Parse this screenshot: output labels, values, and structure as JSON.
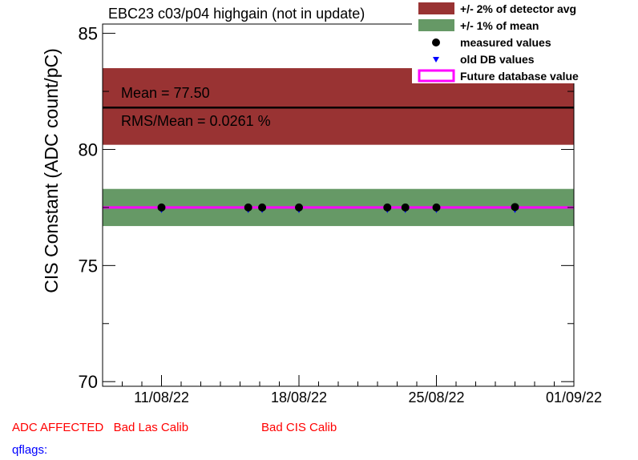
{
  "chart_data": {
    "type": "scatter",
    "title": "EBC23 c03/p04 highgain (not in update)",
    "ylabel": "CIS Constant (ADC count/pC)",
    "xlabel": "",
    "ylim": [
      69.8,
      85.4
    ],
    "y_ticks": [
      "70",
      "75",
      "80",
      "85"
    ],
    "x_tick_labels": [
      "11/08/22",
      "18/08/22",
      "25/08/22",
      "01/09/22"
    ],
    "x_tick_dates": [
      "2022-08-11",
      "2022-08-18",
      "2022-08-25",
      "2022-09-01"
    ],
    "xlim": [
      "2022-08-08",
      "2022-09-01"
    ],
    "grid": false,
    "legend_position": "top-right",
    "bands": [
      {
        "name": "+/- 2% of detector avg",
        "y_low": 80.2,
        "y_high": 83.5,
        "color": "#993333"
      },
      {
        "name": "+/- 1% of mean",
        "y_low": 76.7,
        "y_high": 78.3,
        "color": "#669966"
      }
    ],
    "mean_line": {
      "y": 81.8,
      "color": "#000000"
    },
    "future_line": {
      "name": "Future database value",
      "y": 77.5,
      "color": "#ff00ff"
    },
    "annotations": [
      "Mean = 77.50",
      "RMS/Mean = 0.0261 %"
    ],
    "series": [
      {
        "name": "measured values",
        "color": "#000000",
        "x": [
          "2022-08-11",
          "2022-08-15 10:00",
          "2022-08-16 03:00",
          "2022-08-18",
          "2022-08-22 12:00",
          "2022-08-23 10:00",
          "2022-08-25",
          "2022-08-29"
        ],
        "y": [
          77.5,
          77.5,
          77.5,
          77.5,
          77.5,
          77.5,
          77.5,
          77.52
        ]
      },
      {
        "name": "old DB values",
        "color": "#0000ff",
        "x": [
          "2022-08-11",
          "2022-08-15 10:00",
          "2022-08-16 03:00",
          "2022-08-18",
          "2022-08-22 12:00",
          "2022-08-23 10:00",
          "2022-08-25",
          "2022-08-29"
        ],
        "y": [
          77.5,
          77.5,
          77.5,
          77.5,
          77.5,
          77.5,
          77.5,
          77.5
        ]
      }
    ],
    "legend": [
      {
        "label": "+/- 2% of detector avg",
        "kind": "box",
        "color": "#993333"
      },
      {
        "label": "+/- 1% of mean",
        "kind": "box",
        "color": "#669966"
      },
      {
        "label": "measured values",
        "kind": "dot",
        "color": "#000000"
      },
      {
        "label": "old DB values",
        "kind": "triangle",
        "color": "#0000ff"
      },
      {
        "label": "Future database value",
        "kind": "line",
        "color": "#ff00ff"
      }
    ]
  },
  "footer": {
    "flags_line": "ADC AFFECTED   Bad Las Calib",
    "cis_flag": "Bad CIS Calib",
    "qflags_label": "qflags:",
    "flag_color": "#ff0000",
    "qflag_color": "#0000ff"
  }
}
